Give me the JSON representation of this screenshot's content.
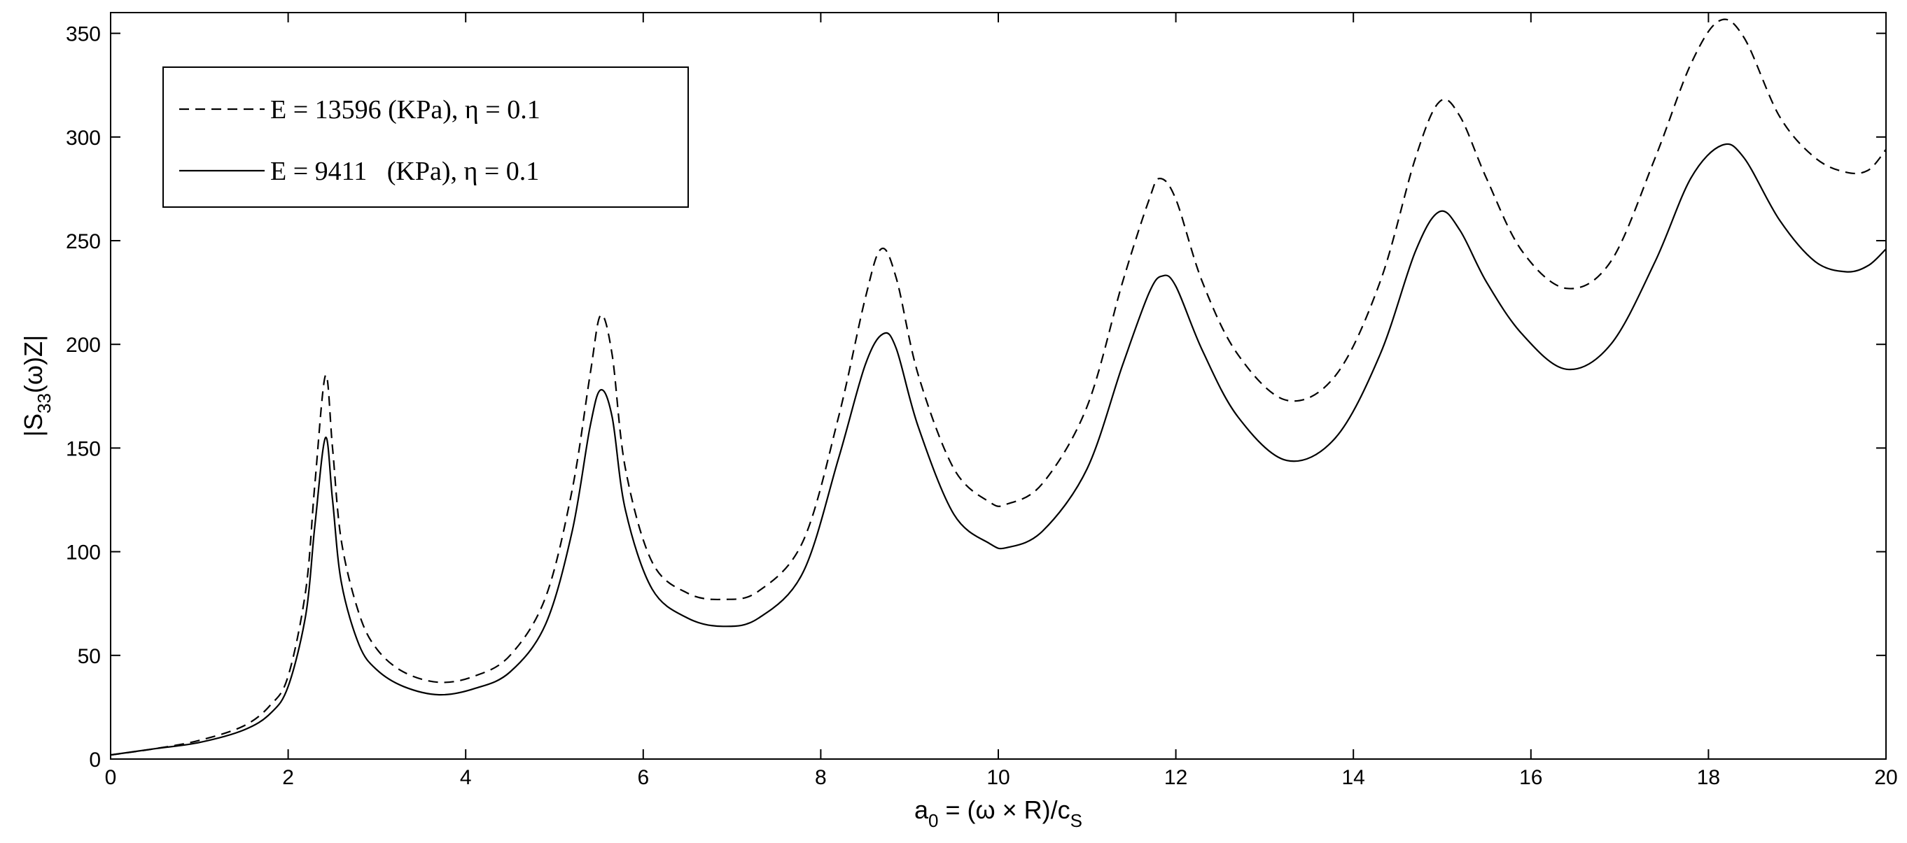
{
  "chart_data": {
    "type": "line",
    "title": "",
    "xlabel": {
      "base": "a",
      "sub": "0",
      "rest": " = (ω × R)/c",
      "tail_sub": "S"
    },
    "ylabel": {
      "pre": "|S",
      "sub": "33",
      "post": "(ω)Z|"
    },
    "xlim": [
      0,
      20
    ],
    "ylim": [
      0,
      360
    ],
    "xticks": [
      0,
      2,
      4,
      6,
      8,
      10,
      12,
      14,
      16,
      18,
      20
    ],
    "yticks": [
      0,
      50,
      100,
      150,
      200,
      250,
      300,
      350
    ],
    "grid": false,
    "legend": {
      "placement": "top-left",
      "boxed": true
    },
    "series": [
      {
        "name": "E = 13596 (KPa), η = 0.1",
        "color": "#000000",
        "style": "dashed",
        "x": [
          0,
          0.5,
          1,
          1.5,
          1.8,
          2,
          2.2,
          2.3,
          2.42,
          2.5,
          2.6,
          2.8,
          3,
          3.3,
          3.7,
          4.1,
          4.5,
          4.9,
          5.2,
          5.4,
          5.52,
          5.65,
          5.8,
          6.1,
          6.5,
          6.9,
          7.3,
          7.8,
          8.2,
          8.5,
          8.68,
          8.85,
          9.1,
          9.5,
          9.9,
          10.1,
          10.5,
          11,
          11.4,
          11.7,
          11.82,
          12,
          12.3,
          12.7,
          13.25,
          13.8,
          14.3,
          14.7,
          14.97,
          15.2,
          15.5,
          15.9,
          16.4,
          16.9,
          17.4,
          17.8,
          18.12,
          18.4,
          18.8,
          19.2,
          19.55,
          19.8,
          20
        ],
        "y": [
          2,
          5,
          9,
          16,
          26,
          40,
          82,
          132,
          185,
          150,
          105,
          70,
          53,
          42,
          37,
          40,
          50,
          78,
          130,
          185,
          214,
          195,
          140,
          95,
          80,
          77,
          81,
          105,
          165,
          222,
          246,
          232,
          185,
          140,
          124,
          123,
          133,
          170,
          230,
          270,
          280,
          270,
          230,
          195,
          173,
          185,
          230,
          290,
          317,
          310,
          280,
          245,
          227,
          240,
          290,
          335,
          356,
          348,
          310,
          290,
          283,
          284,
          294
        ]
      },
      {
        "name": "E = 9411   (KPa), η = 0.1",
        "color": "#000000",
        "style": "solid",
        "x": [
          0,
          0.5,
          1,
          1.5,
          1.8,
          2,
          2.2,
          2.3,
          2.42,
          2.5,
          2.6,
          2.8,
          3,
          3.3,
          3.7,
          4.1,
          4.5,
          4.9,
          5.2,
          5.4,
          5.52,
          5.65,
          5.8,
          6.1,
          6.5,
          6.9,
          7.3,
          7.8,
          8.2,
          8.5,
          8.7,
          8.85,
          9.1,
          9.5,
          9.9,
          10.1,
          10.5,
          11,
          11.4,
          11.7,
          11.85,
          12,
          12.3,
          12.7,
          13.25,
          13.8,
          14.3,
          14.7,
          14.97,
          15.2,
          15.5,
          15.9,
          16.4,
          16.9,
          17.4,
          17.8,
          18.15,
          18.4,
          18.8,
          19.2,
          19.55,
          19.8,
          20
        ],
        "y": [
          2,
          5,
          8,
          14,
          22,
          35,
          70,
          112,
          155,
          125,
          85,
          55,
          43,
          35,
          31,
          34,
          42,
          65,
          110,
          160,
          178,
          165,
          120,
          82,
          68,
          64,
          68,
          90,
          145,
          190,
          205,
          198,
          160,
          118,
          104,
          102,
          110,
          140,
          190,
          225,
          233,
          228,
          197,
          165,
          144,
          155,
          195,
          245,
          264,
          255,
          230,
          205,
          188,
          200,
          240,
          280,
          296,
          290,
          260,
          240,
          235,
          238,
          246
        ]
      }
    ]
  }
}
